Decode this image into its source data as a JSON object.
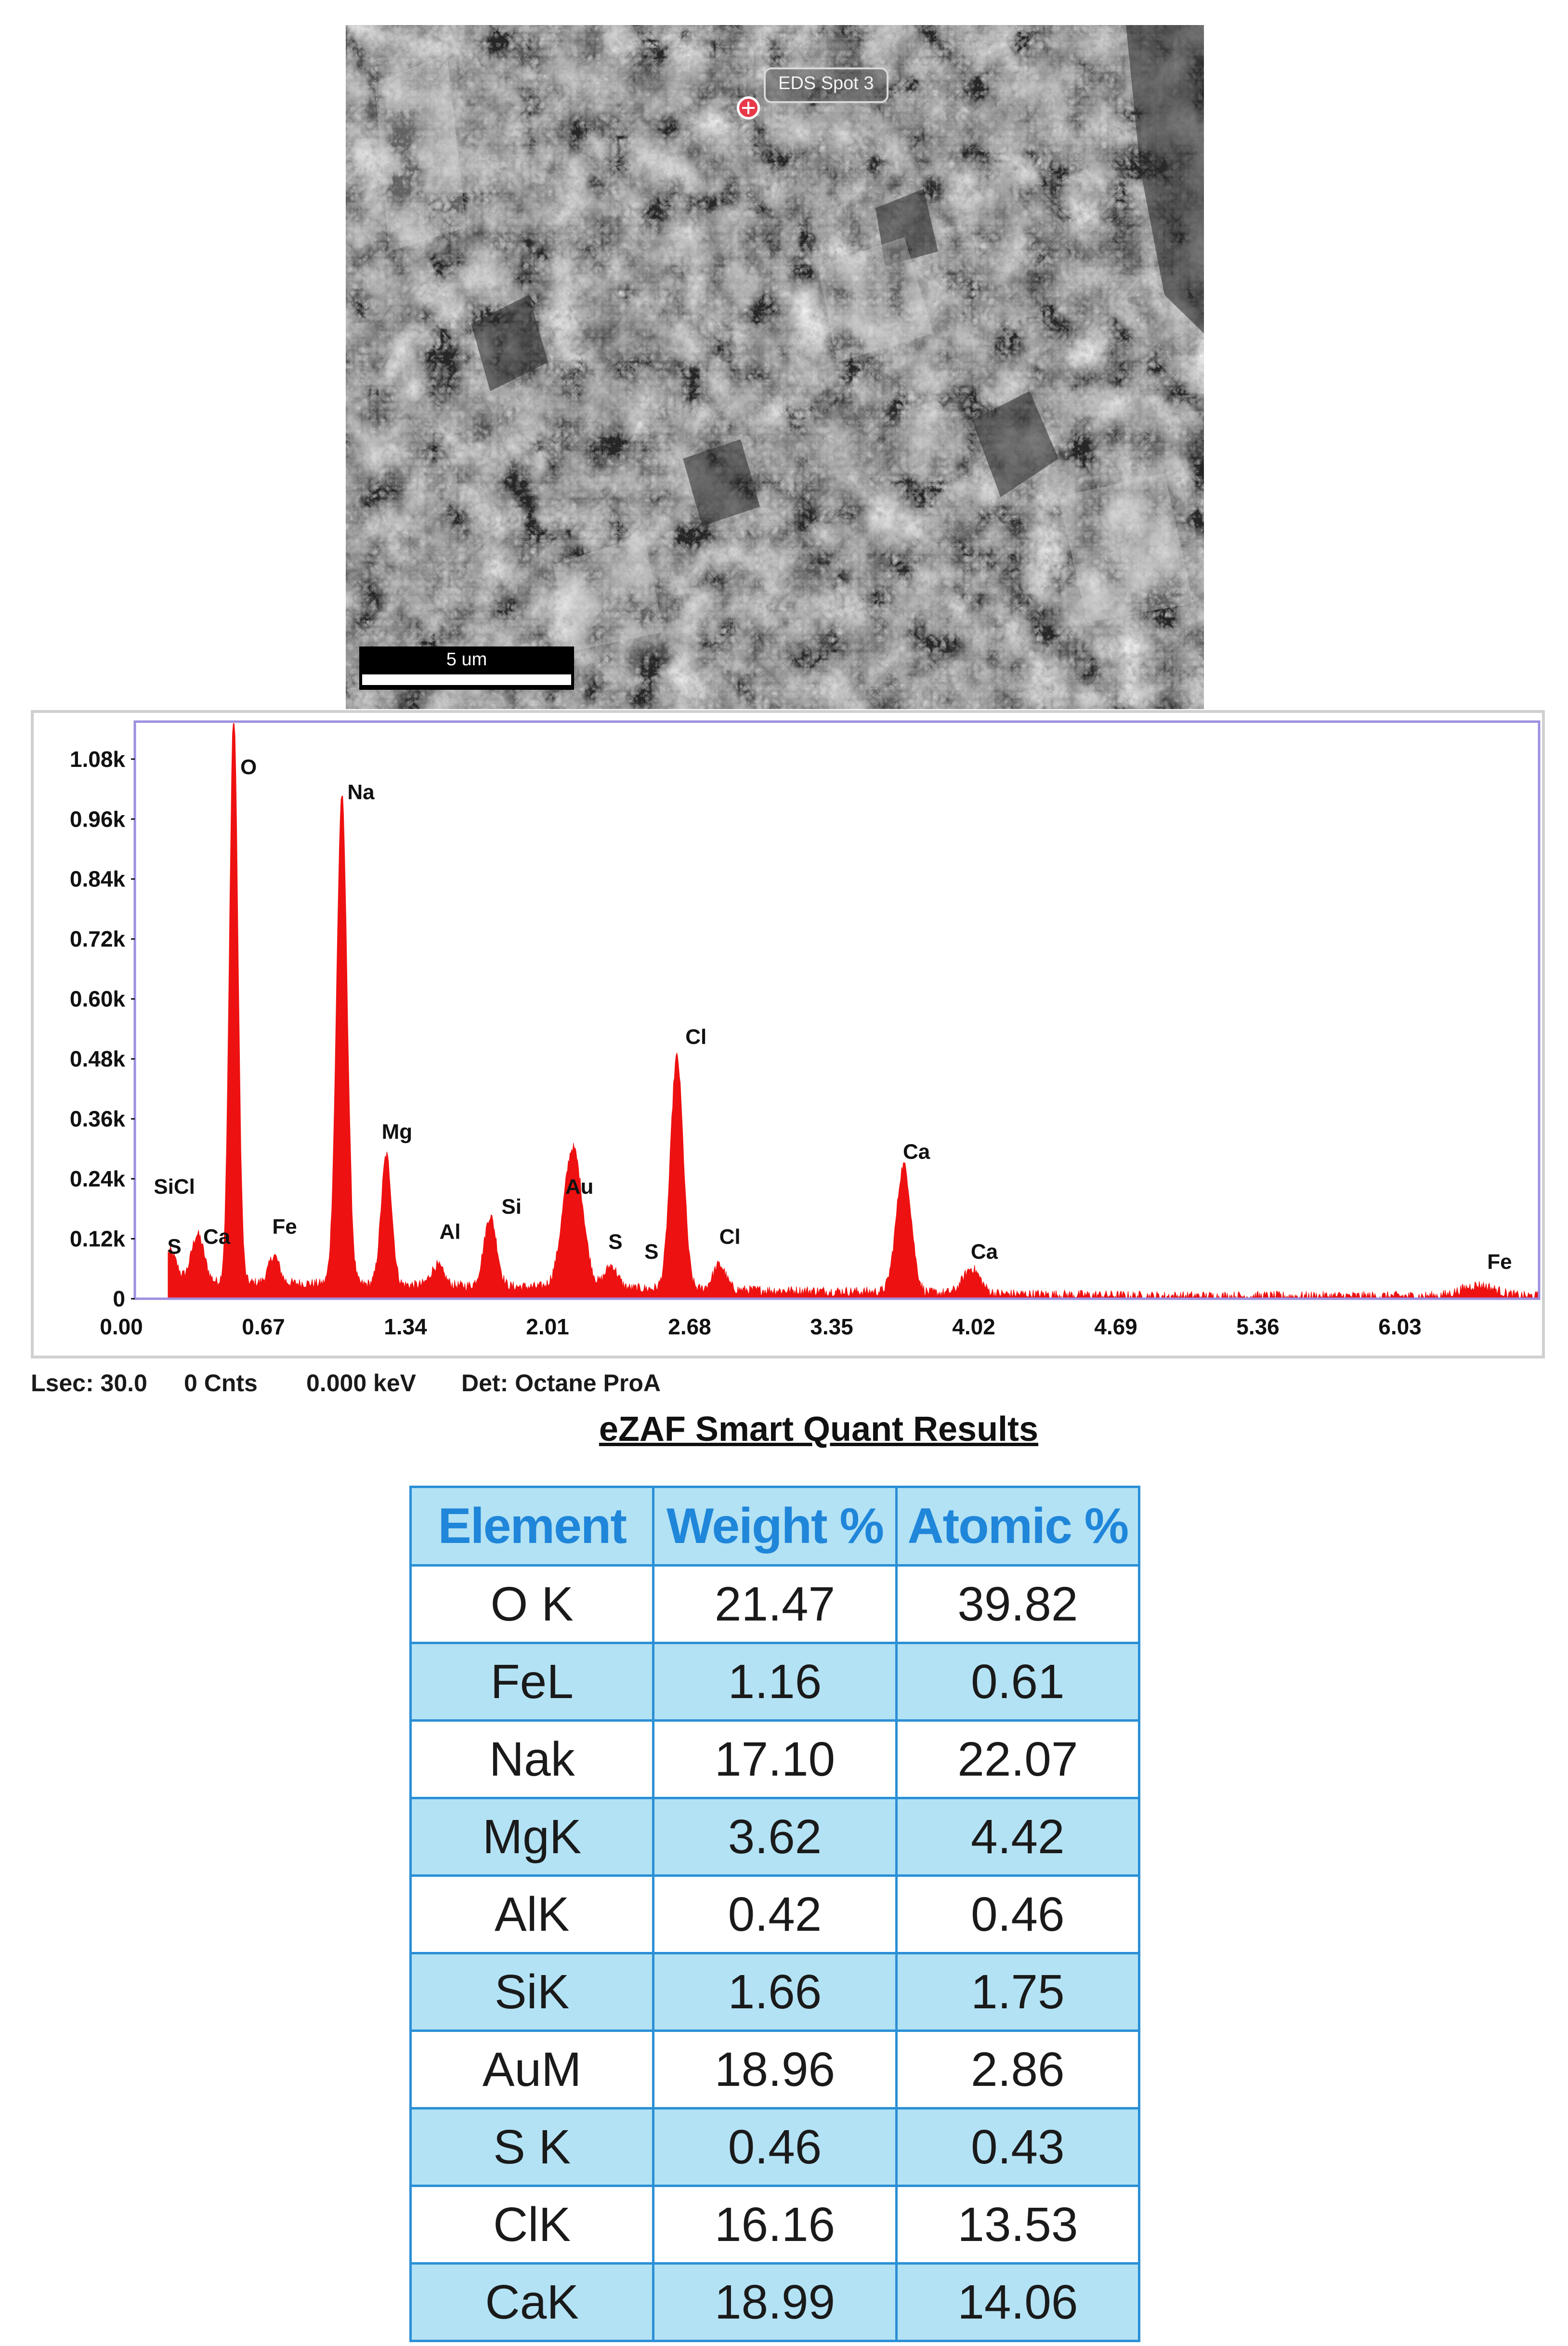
{
  "micrograph": {
    "spot_label": "EDS Spot 3",
    "scale_bar_label": "5 um"
  },
  "chart_data": {
    "type": "line",
    "title": "",
    "xlabel": "",
    "ylabel": "",
    "x_ticks": [
      "0.00",
      "0.67",
      "1.34",
      "2.01",
      "2.68",
      "3.35",
      "4.02",
      "4.69",
      "5.36",
      "6.03"
    ],
    "y_ticks": [
      "0",
      "0.12k",
      "0.24k",
      "0.36k",
      "0.48k",
      "0.60k",
      "0.72k",
      "0.84k",
      "0.96k",
      "1.08k"
    ],
    "xlim": [
      0,
      6.7
    ],
    "ylim": [
      0,
      1.155
    ],
    "y_unit": "k",
    "fill_color": "#ee1111",
    "frame_color": "#9c8fe0",
    "baseline_start_keV": 0.22,
    "background_level": 0.035,
    "peaks": [
      {
        "x": 0.23,
        "y": 0.06,
        "w": 0.03
      },
      {
        "x": 0.36,
        "y": 0.095,
        "w": 0.03
      },
      {
        "x": 0.53,
        "y": 1.15,
        "w": 0.02
      },
      {
        "x": 0.72,
        "y": 0.055,
        "w": 0.025
      },
      {
        "x": 1.04,
        "y": 0.98,
        "w": 0.025
      },
      {
        "x": 1.25,
        "y": 0.26,
        "w": 0.025
      },
      {
        "x": 1.49,
        "y": 0.04,
        "w": 0.03
      },
      {
        "x": 1.74,
        "y": 0.14,
        "w": 0.03
      },
      {
        "x": 2.13,
        "y": 0.28,
        "w": 0.045
      },
      {
        "x": 2.31,
        "y": 0.045,
        "w": 0.03
      },
      {
        "x": 2.62,
        "y": 0.465,
        "w": 0.03
      },
      {
        "x": 2.82,
        "y": 0.05,
        "w": 0.03
      },
      {
        "x": 3.69,
        "y": 0.255,
        "w": 0.035
      },
      {
        "x": 4.01,
        "y": 0.05,
        "w": 0.04
      },
      {
        "x": 6.4,
        "y": 0.022,
        "w": 0.08
      }
    ],
    "peak_labels": [
      {
        "text": "S",
        "x": 0.25,
        "y": 0.09
      },
      {
        "text": "SiCl",
        "x": 0.25,
        "y": 0.21
      },
      {
        "text": "Ca",
        "x": 0.45,
        "y": 0.11
      },
      {
        "text": "O",
        "x": 0.6,
        "y": 1.05
      },
      {
        "text": "Fe",
        "x": 0.77,
        "y": 0.13
      },
      {
        "text": "Na",
        "x": 1.13,
        "y": 1.0
      },
      {
        "text": "Mg",
        "x": 1.3,
        "y": 0.32
      },
      {
        "text": "Al",
        "x": 1.55,
        "y": 0.12
      },
      {
        "text": "Si",
        "x": 1.84,
        "y": 0.17
      },
      {
        "text": "Au",
        "x": 2.16,
        "y": 0.21
      },
      {
        "text": "S",
        "x": 2.33,
        "y": 0.1
      },
      {
        "text": "S",
        "x": 2.5,
        "y": 0.08
      },
      {
        "text": "Cl",
        "x": 2.71,
        "y": 0.51
      },
      {
        "text": "Cl",
        "x": 2.87,
        "y": 0.11
      },
      {
        "text": "Ca",
        "x": 3.75,
        "y": 0.28
      },
      {
        "text": "Ca",
        "x": 4.07,
        "y": 0.08
      },
      {
        "text": "Fe",
        "x": 6.5,
        "y": 0.06
      }
    ]
  },
  "status": {
    "lsec": "Lsec: 30.0",
    "counts": "0 Cnts",
    "energy": "0.000 keV",
    "detector": "Det: Octane ProA"
  },
  "results": {
    "title": "eZAF Smart Quant Results",
    "headers": [
      "Element",
      "Weight %",
      "Atomic %"
    ],
    "rows": [
      [
        "O K",
        "21.47",
        "39.82"
      ],
      [
        "FeL",
        "1.16",
        "0.61"
      ],
      [
        "Nak",
        "17.10",
        "22.07"
      ],
      [
        "MgK",
        "3.62",
        "4.42"
      ],
      [
        "AlK",
        "0.42",
        "0.46"
      ],
      [
        "SiK",
        "1.66",
        "1.75"
      ],
      [
        "AuM",
        "18.96",
        "2.86"
      ],
      [
        "S K",
        "0.46",
        "0.43"
      ],
      [
        "ClK",
        "16.16",
        "13.53"
      ],
      [
        "CaK",
        "18.99",
        "14.06"
      ]
    ]
  }
}
